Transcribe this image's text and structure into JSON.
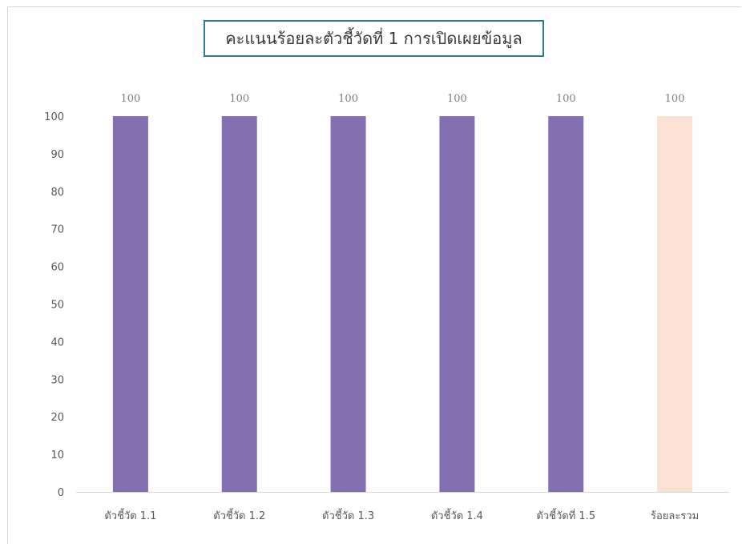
{
  "chart_data": {
    "type": "bar",
    "title": "คะแนนร้อยละตัวชี้วัดที่  1 การเปิดเผยข้อมูล",
    "xlabel": "",
    "ylabel": "",
    "categories": [
      "ตัวชี้วัด 1.1",
      "ตัวชี้วัด 1.2",
      "ตัวชี้วัด 1.3",
      "ตัวชี้วัด 1.4",
      "ตัวชี้วัดที่ 1.5",
      "ร้อยละรวม"
    ],
    "values": [
      100,
      100,
      100,
      100,
      100,
      100
    ],
    "bar_colors": [
      "#8470b0",
      "#8470b0",
      "#8470b0",
      "#8470b0",
      "#8470b0",
      "#fbe1d3"
    ],
    "ylim": [
      0,
      100
    ],
    "yticks": [
      0,
      10,
      20,
      30,
      40,
      50,
      60,
      70,
      80,
      90,
      100
    ],
    "data_labels": [
      "100",
      "100",
      "100",
      "100",
      "100",
      "100"
    ],
    "grid": false,
    "legend": "none"
  }
}
